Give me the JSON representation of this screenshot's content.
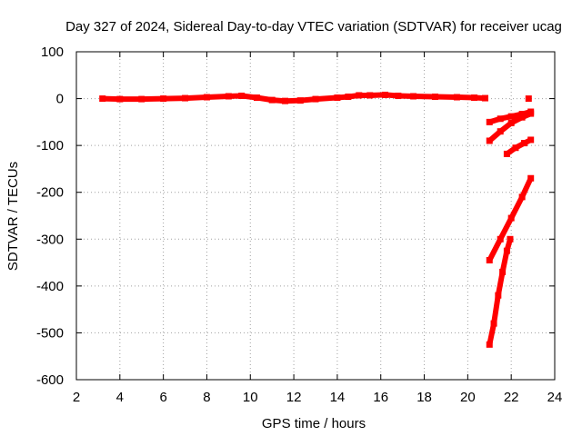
{
  "chart_data": {
    "type": "scatter",
    "title": "Day 327 of 2024, Sidereal Day-to-day VTEC variation (SDTVAR) for receiver ucag",
    "xlabel": "GPS time / hours",
    "ylabel": "SDTVAR / TECUs",
    "xlim": [
      2,
      24
    ],
    "ylim": [
      -600,
      100
    ],
    "xticks": [
      2,
      4,
      6,
      8,
      10,
      12,
      14,
      16,
      18,
      20,
      22,
      24
    ],
    "yticks": [
      100,
      0,
      -100,
      -200,
      -300,
      -400,
      -500,
      -600
    ],
    "grid": true,
    "legend": "none",
    "color": "#ff0000",
    "series": [
      {
        "values": [
          [
            3.2,
            0
          ],
          [
            4.0,
            -1
          ],
          [
            5.0,
            -1
          ],
          [
            6.0,
            0
          ],
          [
            7.0,
            1
          ],
          [
            8.0,
            3
          ],
          [
            9.0,
            5
          ],
          [
            9.6,
            6
          ],
          [
            10.3,
            2
          ],
          [
            11.0,
            -3
          ],
          [
            11.6,
            -5
          ],
          [
            12.3,
            -4
          ],
          [
            13.0,
            -1
          ],
          [
            14.0,
            2
          ],
          [
            14.5,
            4
          ],
          [
            15.0,
            7
          ],
          [
            15.5,
            7
          ],
          [
            16.2,
            8
          ],
          [
            16.8,
            6
          ],
          [
            17.5,
            5
          ],
          [
            18.5,
            4
          ],
          [
            19.5,
            3
          ],
          [
            20.3,
            2
          ],
          [
            20.8,
            1
          ]
        ]
      },
      {
        "values": [
          [
            22.8,
            0
          ]
        ]
      },
      {
        "values": [
          [
            21.0,
            -50
          ],
          [
            21.5,
            -43
          ],
          [
            22.0,
            -38
          ],
          [
            22.5,
            -33
          ],
          [
            22.9,
            -28
          ]
        ]
      },
      {
        "values": [
          [
            21.0,
            -90
          ],
          [
            21.5,
            -70
          ],
          [
            22.0,
            -52
          ],
          [
            22.5,
            -40
          ],
          [
            22.9,
            -32
          ]
        ]
      },
      {
        "values": [
          [
            21.8,
            -118
          ],
          [
            22.2,
            -105
          ],
          [
            22.6,
            -95
          ],
          [
            22.9,
            -88
          ]
        ]
      },
      {
        "values": [
          [
            21.0,
            -345
          ],
          [
            21.5,
            -300
          ],
          [
            22.0,
            -255
          ],
          [
            22.5,
            -210
          ],
          [
            22.9,
            -170
          ]
        ]
      },
      {
        "values": [
          [
            21.0,
            -525
          ],
          [
            21.2,
            -480
          ],
          [
            21.4,
            -420
          ],
          [
            21.6,
            -370
          ],
          [
            21.8,
            -325
          ],
          [
            21.95,
            -300
          ]
        ]
      }
    ]
  }
}
